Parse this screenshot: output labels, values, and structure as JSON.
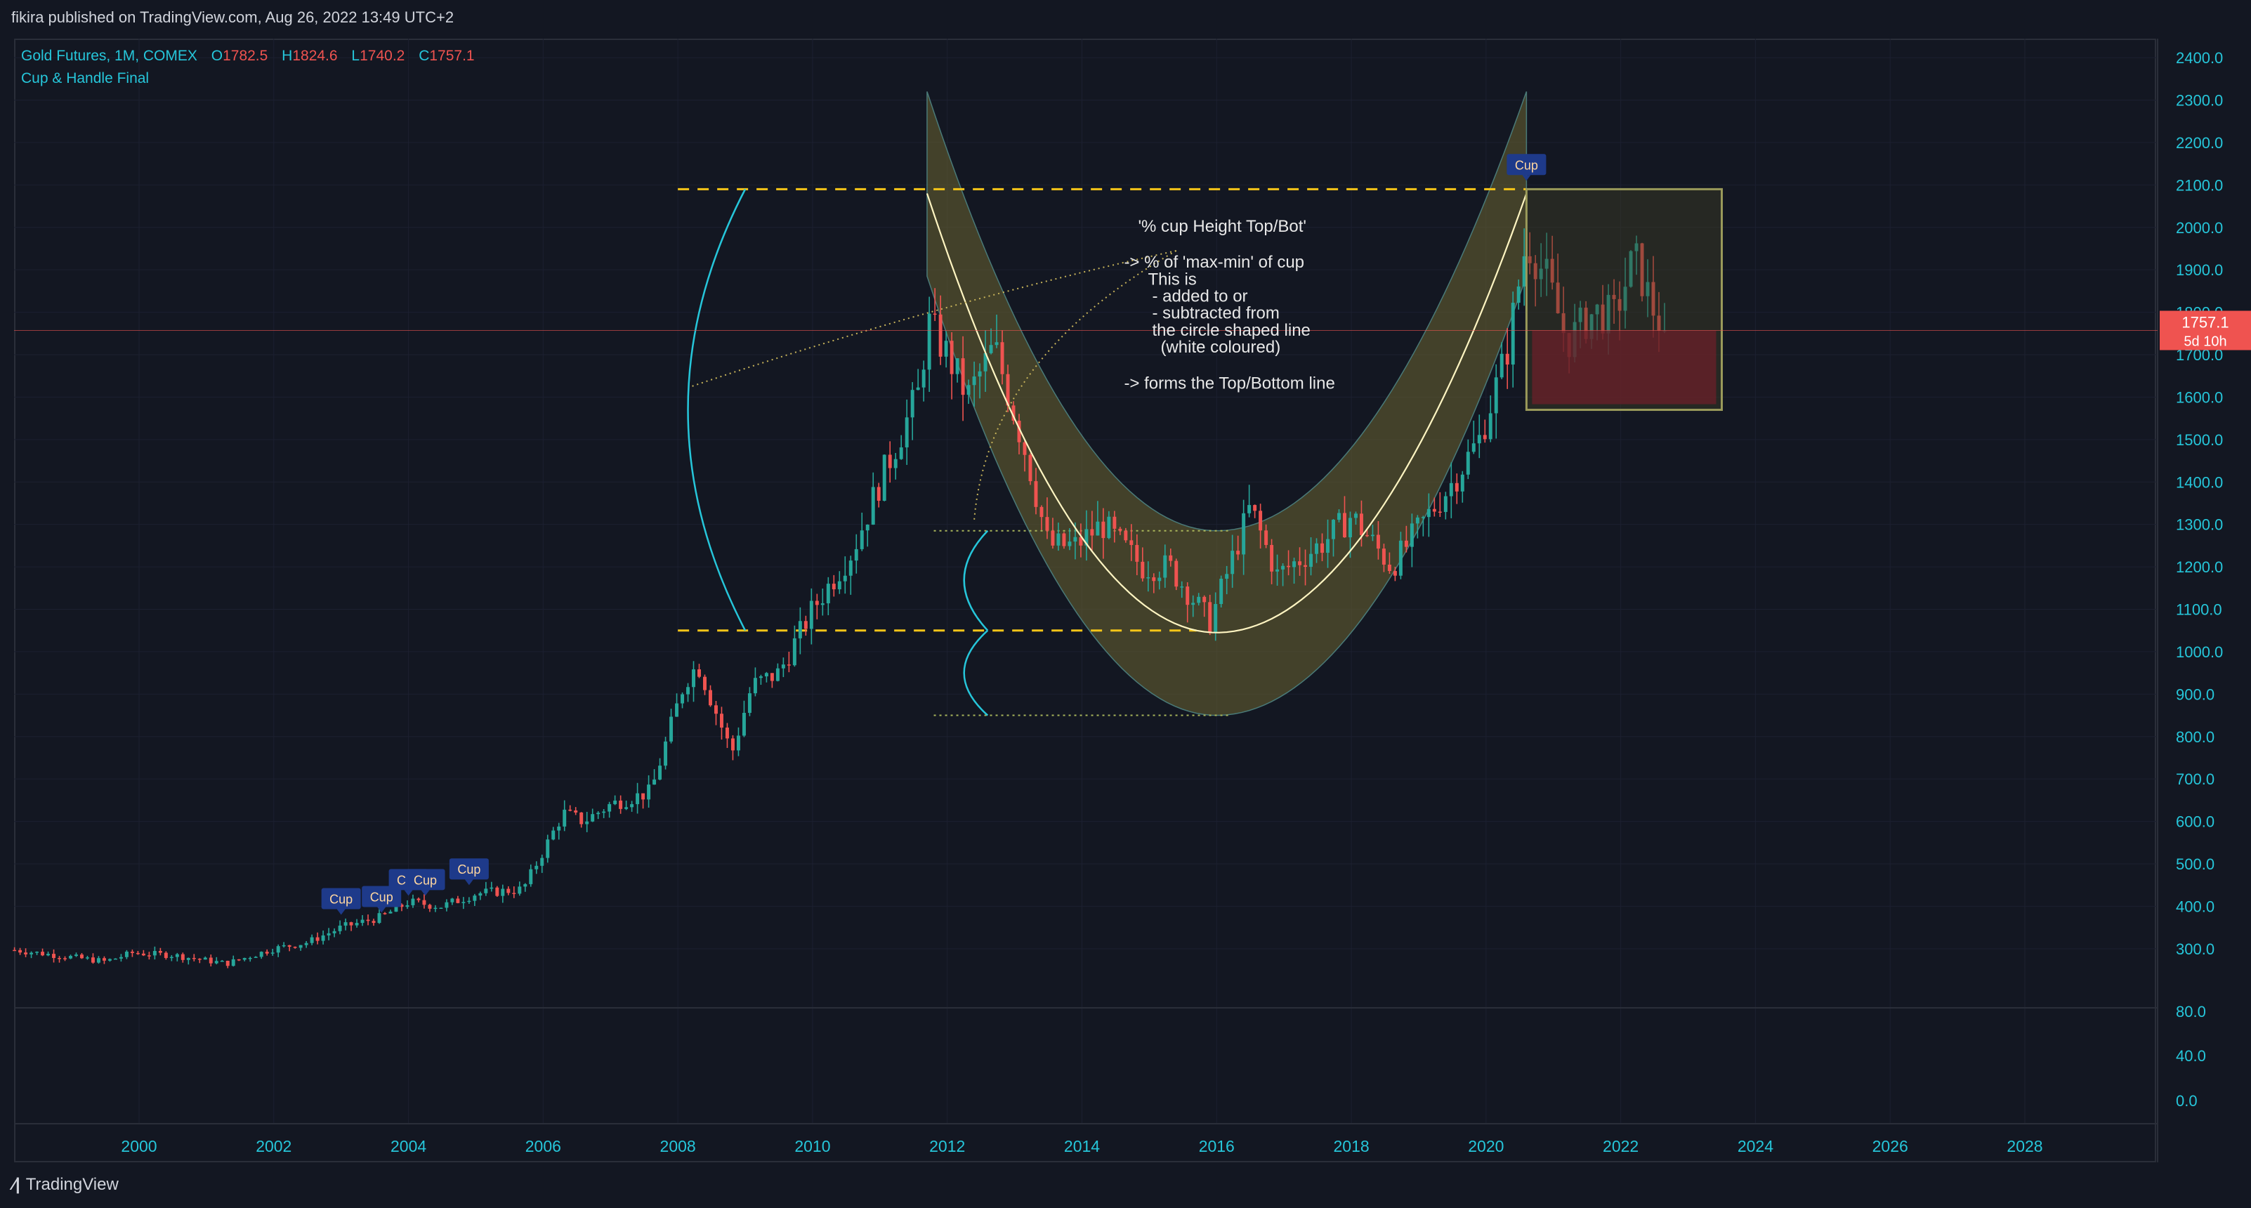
{
  "header": {
    "published": "fikira published on TradingView.com, Aug 26, 2022 13:49 UTC+2"
  },
  "legend": {
    "symbol": "Gold Futures, 1M, COMEX",
    "open_label": "O",
    "open": "1782.5",
    "high_label": "H",
    "high": "1824.6",
    "low_label": "L",
    "low": "1740.2",
    "close_label": "C",
    "close": "1757.1",
    "indicator": "Cup & Handle Final"
  },
  "price_tag": {
    "price": "1757.1",
    "countdown": "5d 10h"
  },
  "annotation": [
    "'% cup Height Top/Bot'",
    "-> % of 'max-min' of cup",
    "This is",
    "- added to or",
    "- subtracted from",
    "the circle shaped line",
    "(white coloured)",
    "-> forms the Top/Bottom line"
  ],
  "markers": [
    "Cup",
    "Cup",
    "Cup",
    "Cup",
    "Cup",
    "Cup"
  ],
  "footer": {
    "brand": "TradingView"
  },
  "colors": {
    "up": "#26a69a",
    "down": "#ef5350",
    "dashed_level": "#f5c518",
    "arc": "#26c6da",
    "cup_fill": "#6b6432",
    "cup_line": "#fff5c2",
    "marker_bg": "#1e3a8a",
    "handle_box": "#9a9a5a",
    "handle_fill": "#6b1f2a"
  },
  "chart_data": {
    "type": "candlestick",
    "title": "Gold Futures, 1M, COMEX",
    "x_ticks": [
      "2000",
      "2002",
      "2004",
      "2006",
      "2008",
      "2010",
      "2012",
      "2014",
      "2016",
      "2018",
      "2020",
      "2022",
      "2024",
      "2026",
      "2028"
    ],
    "y_ticks_main": [
      "300.0",
      "400.0",
      "500.0",
      "600.0",
      "700.0",
      "800.0",
      "900.0",
      "1000.0",
      "1100.0",
      "1200.0",
      "1300.0",
      "1400.0",
      "1500.0",
      "1600.0",
      "1700.0",
      "1800.0",
      "1900.0",
      "2000.0",
      "2100.0",
      "2200.0",
      "2300.0",
      "2400.0"
    ],
    "y_ticks_indicator": [
      "80.0",
      "40.0",
      "0.0"
    ],
    "ylim": [
      260,
      2420
    ],
    "xlim": [
      1998.15,
      2029.9
    ],
    "cup": {
      "start_year": 2011.7,
      "start_price": 2080,
      "bottom_year": 2016.0,
      "bottom_price": 1045,
      "end_year": 2020.6,
      "end_price": 2080,
      "band_offset_top": 240,
      "band_offset_bottom": 195
    },
    "levels": {
      "cup_top": 2090,
      "cup_bottom": 1050,
      "lower_guide": 850,
      "upper_guide": 1285
    },
    "handle": {
      "x0": 2020.6,
      "x1": 2023.5,
      "top": 2090,
      "bottom": 1570,
      "red_top": 1757
    },
    "marker_positions": [
      {
        "year": 2003.0,
        "price": 380,
        "text": "Cup"
      },
      {
        "year": 2003.6,
        "price": 385,
        "text": "Cup"
      },
      {
        "year": 2004.0,
        "price": 425,
        "text": "Cup"
      },
      {
        "year": 2004.25,
        "price": 425,
        "text": "Cup"
      },
      {
        "year": 2004.9,
        "price": 450,
        "text": "Cup"
      },
      {
        "year": 2020.6,
        "price": 2110,
        "text": "Cup"
      }
    ],
    "anchors": [
      [
        1998.0,
        300
      ],
      [
        1999.5,
        270
      ],
      [
        1999.9,
        290
      ],
      [
        2000.5,
        285
      ],
      [
        2001.3,
        265
      ],
      [
        2002.0,
        300
      ],
      [
        2002.5,
        315
      ],
      [
        2003.0,
        350
      ],
      [
        2003.6,
        375
      ],
      [
        2004.0,
        410
      ],
      [
        2004.5,
        400
      ],
      [
        2005.0,
        430
      ],
      [
        2005.7,
        440
      ],
      [
        2006.3,
        620
      ],
      [
        2006.6,
        600
      ],
      [
        2007.0,
        640
      ],
      [
        2007.6,
        670
      ],
      [
        2008.1,
        930
      ],
      [
        2008.3,
        970
      ],
      [
        2008.8,
        760
      ],
      [
        2009.1,
        920
      ],
      [
        2009.5,
        950
      ],
      [
        2010.0,
        1100
      ],
      [
        2010.6,
        1240
      ],
      [
        2011.0,
        1400
      ],
      [
        2011.6,
        1620
      ],
      [
        2011.7,
        1780
      ],
      [
        2012.0,
        1700
      ],
      [
        2012.3,
        1600
      ],
      [
        2012.7,
        1720
      ],
      [
        2013.2,
        1450
      ],
      [
        2013.5,
        1250
      ],
      [
        2013.9,
        1250
      ],
      [
        2014.3,
        1300
      ],
      [
        2014.9,
        1200
      ],
      [
        2015.3,
        1200
      ],
      [
        2015.9,
        1070
      ],
      [
        2016.5,
        1340
      ],
      [
        2016.9,
        1180
      ],
      [
        2017.6,
        1260
      ],
      [
        2018.0,
        1320
      ],
      [
        2018.6,
        1200
      ],
      [
        2019.0,
        1290
      ],
      [
        2019.5,
        1400
      ],
      [
        2019.9,
        1500
      ],
      [
        2020.3,
        1700
      ],
      [
        2020.6,
        1970
      ],
      [
        2020.9,
        1880
      ],
      [
        2021.2,
        1730
      ],
      [
        2021.6,
        1800
      ],
      [
        2021.9,
        1790
      ],
      [
        2022.2,
        1930
      ],
      [
        2022.5,
        1800
      ],
      [
        2022.65,
        1757
      ]
    ]
  }
}
